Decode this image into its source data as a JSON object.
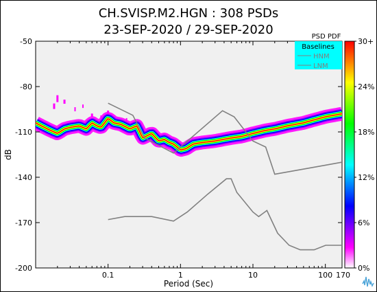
{
  "chart_data": {
    "type": "heatmap",
    "title": "CH.SVISP.M2.HGN : 308 PSDs",
    "subtitle": "23-SEP-2020 / 29-SEP-2020",
    "xlabel": "Period (Sec)",
    "ylabel": "dB",
    "x_scale": "log",
    "xlim": [
      0.01,
      170
    ],
    "ylim": [
      -200,
      -50
    ],
    "x_ticks": [
      {
        "value": 0.1,
        "label": "0.1"
      },
      {
        "value": 1,
        "label": "1"
      },
      {
        "value": 10,
        "label": "10"
      },
      {
        "value": 100,
        "label": "100"
      },
      {
        "value": 170,
        "label": "170"
      }
    ],
    "y_ticks": [
      {
        "value": -50,
        "label": "-50"
      },
      {
        "value": -80,
        "label": "-80"
      },
      {
        "value": -110,
        "label": "-110"
      },
      {
        "value": -140,
        "label": "-140"
      },
      {
        "value": -170,
        "label": "-170"
      },
      {
        "value": -200,
        "label": "-200"
      }
    ],
    "colorbar": {
      "title": "PSD PDF",
      "ticks": [
        "30+",
        "24%",
        "18%",
        "12%",
        "6%",
        "0%"
      ],
      "stops": [
        "#ffffff",
        "#ff00ff",
        "#8000ff",
        "#0000ff",
        "#0080ff",
        "#00ffff",
        "#00ff80",
        "#00ff00",
        "#80ff00",
        "#ffff00",
        "#ff8000",
        "#ff0000"
      ]
    },
    "legend": {
      "title": "Baselines",
      "entries": [
        "HNM",
        "LNM"
      ],
      "placement": "top-right",
      "background": "#00ffff"
    },
    "series": [
      {
        "name": "HNM",
        "x": [
          0.1,
          0.22,
          0.32,
          0.8,
          3.8,
          5.5,
          10,
          15,
          20,
          100,
          170
        ],
        "y": [
          -91,
          -99,
          -114,
          -124,
          -96,
          -100,
          -116,
          -120,
          -138,
          -132,
          -130
        ]
      },
      {
        "name": "LNM",
        "x": [
          0.1,
          0.17,
          0.4,
          0.8,
          1.24,
          2.4,
          4.3,
          5,
          6,
          10,
          12,
          15.6,
          21.9,
          31.6,
          45,
          70,
          101,
          170
        ],
        "y": [
          -168,
          -166,
          -166,
          -169,
          -163,
          -151,
          -141,
          -141,
          -150,
          -163,
          -166,
          -162,
          -177,
          -185,
          -188,
          -188,
          -185,
          -185
        ]
      }
    ],
    "pdf_band": {
      "x": [
        0.01,
        0.012,
        0.016,
        0.02,
        0.025,
        0.03,
        0.04,
        0.05,
        0.06,
        0.07,
        0.08,
        0.1,
        0.12,
        0.15,
        0.2,
        0.25,
        0.3,
        0.4,
        0.5,
        0.6,
        0.7,
        0.8,
        0.9,
        1,
        1.2,
        1.5,
        2,
        3,
        5,
        7,
        10,
        15,
        20,
        30,
        50,
        70,
        100,
        170
      ],
      "y": [
        -104,
        -106,
        -109,
        -111,
        -108,
        -107,
        -106,
        -108,
        -104,
        -106,
        -107,
        -101,
        -104,
        -105,
        -108,
        -106,
        -114,
        -111,
        -116,
        -115,
        -117,
        -118,
        -120,
        -122,
        -121,
        -118,
        -117,
        -116,
        -114,
        -113,
        -111,
        -109,
        -108,
        -106,
        -104,
        -102,
        -100,
        -98
      ]
    }
  }
}
